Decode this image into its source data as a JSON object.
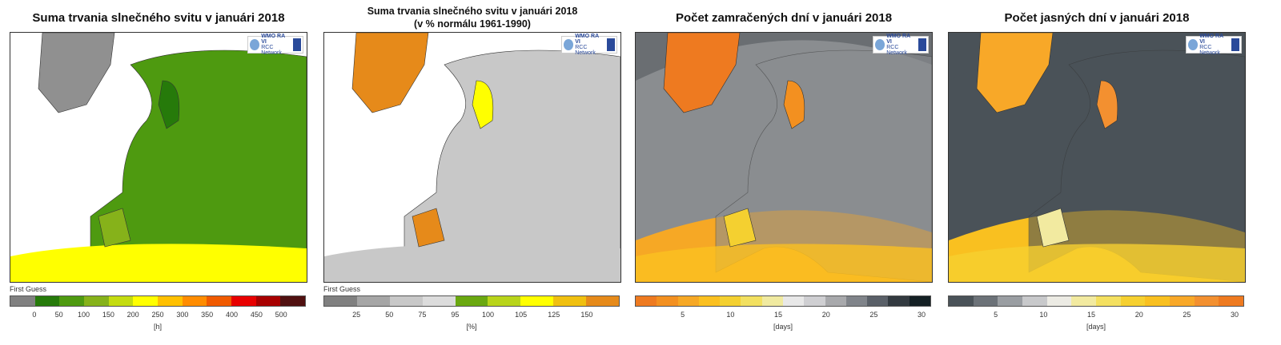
{
  "logo": {
    "line1": "WMO RA VI",
    "line2": "RCC Network"
  },
  "panels": [
    {
      "title": "Suma trvania slnečného svitu v januári 2018",
      "subtitle": "",
      "label": "First Guess",
      "unit": "[h]",
      "ticks": [
        "0",
        "50",
        "100",
        "150",
        "200",
        "250",
        "300",
        "350",
        "400",
        "450",
        "500"
      ],
      "colors": [
        "#808080",
        "#267a0a",
        "#4e9a10",
        "#86b21a",
        "#c4dc10",
        "#ffff00",
        "#ffc000",
        "#ff8c00",
        "#f05a00",
        "#e80000",
        "#a80000",
        "#501010"
      ],
      "bg": "#4e9a10",
      "sea": "#5fa010"
    },
    {
      "title": "Suma trvania slnečného svitu v januári 2018",
      "subtitle": "(v % normálu 1961-1990)",
      "label": "First Guess",
      "unit": "[%]",
      "ticks": [
        "25",
        "50",
        "75",
        "95",
        "100",
        "105",
        "125",
        "150"
      ],
      "colors": [
        "#808080",
        "#a6a6a6",
        "#c8c8c8",
        "#dcdcdc",
        "#6aa810",
        "#b8d41a",
        "#ffff00",
        "#f0c010",
        "#e68a1a"
      ],
      "bg": "#c8c8c8",
      "sea": "#c8c8c8"
    },
    {
      "title": "Počet zamračených dní v januári 2018",
      "subtitle": "",
      "label": "",
      "unit": "[days]",
      "ticks": [
        "5",
        "10",
        "15",
        "20",
        "25",
        "30"
      ],
      "colors": [
        "#ee7a20",
        "#f39020",
        "#f6a825",
        "#fbc020",
        "#f4d030",
        "#f2e060",
        "#f0eaa0",
        "#e8e8e8",
        "#cfcfd2",
        "#a8a9ac",
        "#80848a",
        "#5a6068",
        "#333a40",
        "#142024"
      ],
      "bg": "#8a8d90",
      "sea": "#6a6e72"
    },
    {
      "title": "Počet jasných dní v januári 2018",
      "subtitle": "",
      "label": "",
      "unit": "[days]",
      "ticks": [
        "5",
        "10",
        "15",
        "20",
        "25",
        "30"
      ],
      "colors": [
        "#4a5258",
        "#6c7278",
        "#9a9ea2",
        "#c8c9cb",
        "#ecebe4",
        "#f2eaa0",
        "#f4e060",
        "#f6d030",
        "#f9c020",
        "#f8a828",
        "#f39030",
        "#ee7a20"
      ],
      "bg": "#4a5258",
      "sea": "#4a5258"
    }
  ]
}
